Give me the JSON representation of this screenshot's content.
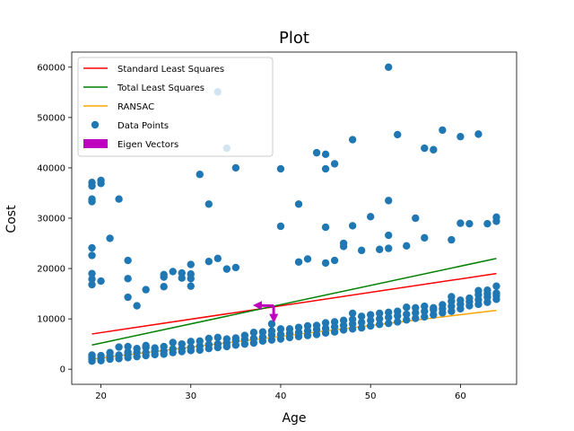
{
  "chart_data": {
    "type": "scatter",
    "title": "Plot",
    "xlabel": "Age",
    "ylabel": "Cost",
    "xlim": [
      16.75,
      66.25
    ],
    "ylim": [
      -3000,
      63000
    ],
    "xticks": [
      20,
      30,
      40,
      50,
      60
    ],
    "yticks": [
      0,
      10000,
      20000,
      30000,
      40000,
      50000,
      60000
    ],
    "grid": false,
    "legend_position": "top-left",
    "lines": [
      {
        "name": "Standard Least Squares",
        "color": "#ff0000",
        "x": [
          19,
          64
        ],
        "y": [
          7000,
          19000
        ]
      },
      {
        "name": "Total Least Squares",
        "color": "#008000",
        "x": [
          19,
          64
        ],
        "y": [
          4800,
          22000
        ]
      },
      {
        "name": "RANSAC",
        "color": "#ffa500",
        "x": [
          19,
          64
        ],
        "y": [
          2000,
          11700
        ]
      }
    ],
    "scatter": {
      "name": "Data Points",
      "color": "#1f77b4",
      "points": [
        [
          19,
          1600
        ],
        [
          19,
          2000
        ],
        [
          19,
          2400
        ],
        [
          19,
          2800
        ],
        [
          19,
          16800
        ],
        [
          19,
          17900
        ],
        [
          19,
          19000
        ],
        [
          19,
          22600
        ],
        [
          19,
          24100
        ],
        [
          19,
          33300
        ],
        [
          19,
          33800
        ],
        [
          19,
          36400
        ],
        [
          19,
          37100
        ],
        [
          20,
          1700
        ],
        [
          20,
          2200
        ],
        [
          20,
          2700
        ],
        [
          20,
          17500
        ],
        [
          20,
          36900
        ],
        [
          20,
          37500
        ],
        [
          21,
          2000
        ],
        [
          21,
          2600
        ],
        [
          21,
          3300
        ],
        [
          21,
          26000
        ],
        [
          22,
          2100
        ],
        [
          22,
          2800
        ],
        [
          22,
          4400
        ],
        [
          22,
          33800
        ],
        [
          23,
          2300
        ],
        [
          23,
          2900
        ],
        [
          23,
          3400
        ],
        [
          23,
          4500
        ],
        [
          23,
          14300
        ],
        [
          23,
          18000
        ],
        [
          23,
          21600
        ],
        [
          24,
          2500
        ],
        [
          24,
          3300
        ],
        [
          24,
          4100
        ],
        [
          24,
          12600
        ],
        [
          25,
          2700
        ],
        [
          25,
          3300
        ],
        [
          25,
          4300
        ],
        [
          25,
          4700
        ],
        [
          25,
          15800
        ],
        [
          26,
          2900
        ],
        [
          26,
          3600
        ],
        [
          26,
          4200
        ],
        [
          27,
          3000
        ],
        [
          27,
          3600
        ],
        [
          27,
          4500
        ],
        [
          27,
          16400
        ],
        [
          27,
          18300
        ],
        [
          27,
          18800
        ],
        [
          28,
          3300
        ],
        [
          28,
          4000
        ],
        [
          28,
          5300
        ],
        [
          28,
          19400
        ],
        [
          29,
          3500
        ],
        [
          29,
          4100
        ],
        [
          29,
          5000
        ],
        [
          29,
          18100
        ],
        [
          29,
          19100
        ],
        [
          30,
          3700
        ],
        [
          30,
          4300
        ],
        [
          30,
          5500
        ],
        [
          30,
          16500
        ],
        [
          30,
          18000
        ],
        [
          30,
          18900
        ],
        [
          30,
          20800
        ],
        [
          31,
          3800
        ],
        [
          31,
          4600
        ],
        [
          31,
          5600
        ],
        [
          31,
          38700
        ],
        [
          32,
          4100
        ],
        [
          32,
          4900
        ],
        [
          32,
          6100
        ],
        [
          32,
          21400
        ],
        [
          32,
          32800
        ],
        [
          33,
          4300
        ],
        [
          33,
          5000
        ],
        [
          33,
          6300
        ],
        [
          33,
          22000
        ],
        [
          33,
          55100
        ],
        [
          34,
          4500
        ],
        [
          34,
          5200
        ],
        [
          34,
          6000
        ],
        [
          34,
          19900
        ],
        [
          34,
          43900
        ],
        [
          35,
          4800
        ],
        [
          35,
          5700
        ],
        [
          35,
          6200
        ],
        [
          35,
          20200
        ],
        [
          35,
          40000
        ],
        [
          36,
          5000
        ],
        [
          36,
          5900
        ],
        [
          36,
          6700
        ],
        [
          37,
          5200
        ],
        [
          37,
          6100
        ],
        [
          37,
          7300
        ],
        [
          38,
          5600
        ],
        [
          38,
          6400
        ],
        [
          38,
          7400
        ],
        [
          39,
          5800
        ],
        [
          39,
          6800
        ],
        [
          39,
          7600
        ],
        [
          39,
          9000
        ],
        [
          40,
          6000
        ],
        [
          40,
          6900
        ],
        [
          40,
          8000
        ],
        [
          40,
          28400
        ],
        [
          40,
          39800
        ],
        [
          41,
          6300
        ],
        [
          41,
          7100
        ],
        [
          41,
          8000
        ],
        [
          42,
          6500
        ],
        [
          42,
          7300
        ],
        [
          42,
          8300
        ],
        [
          42,
          21300
        ],
        [
          42,
          32800
        ],
        [
          43,
          6700
        ],
        [
          43,
          7600
        ],
        [
          43,
          8600
        ],
        [
          43,
          21900
        ],
        [
          44,
          6900
        ],
        [
          44,
          7900
        ],
        [
          44,
          8700
        ],
        [
          44,
          43000
        ],
        [
          45,
          7200
        ],
        [
          45,
          8100
        ],
        [
          45,
          9200
        ],
        [
          45,
          21100
        ],
        [
          45,
          28200
        ],
        [
          45,
          39800
        ],
        [
          45,
          42700
        ],
        [
          46,
          7400
        ],
        [
          46,
          8400
        ],
        [
          46,
          9400
        ],
        [
          46,
          21600
        ],
        [
          46,
          40800
        ],
        [
          47,
          7800
        ],
        [
          47,
          8700
        ],
        [
          47,
          9700
        ],
        [
          47,
          24400
        ],
        [
          47,
          25000
        ],
        [
          48,
          8000
        ],
        [
          48,
          9000
        ],
        [
          48,
          9900
        ],
        [
          48,
          11100
        ],
        [
          48,
          28500
        ],
        [
          48,
          45600
        ],
        [
          49,
          8200
        ],
        [
          49,
          9300
        ],
        [
          49,
          10500
        ],
        [
          49,
          23600
        ],
        [
          50,
          8600
        ],
        [
          50,
          9700
        ],
        [
          50,
          10800
        ],
        [
          50,
          30300
        ],
        [
          51,
          8900
        ],
        [
          51,
          10000
        ],
        [
          51,
          11100
        ],
        [
          51,
          23800
        ],
        [
          52,
          9100
        ],
        [
          52,
          10300
        ],
        [
          52,
          11300
        ],
        [
          52,
          24000
        ],
        [
          52,
          26600
        ],
        [
          52,
          33500
        ],
        [
          52,
          60000
        ],
        [
          53,
          9400
        ],
        [
          53,
          10600
        ],
        [
          53,
          11500
        ],
        [
          53,
          46600
        ],
        [
          54,
          9800
        ],
        [
          54,
          10900
        ],
        [
          54,
          12300
        ],
        [
          54,
          24500
        ],
        [
          55,
          10100
        ],
        [
          55,
          11200
        ],
        [
          55,
          12200
        ],
        [
          55,
          30000
        ],
        [
          56,
          10400
        ],
        [
          56,
          11500
        ],
        [
          56,
          12500
        ],
        [
          56,
          26100
        ],
        [
          56,
          43900
        ],
        [
          57,
          10800
        ],
        [
          57,
          11800
        ],
        [
          57,
          12200
        ],
        [
          57,
          43600
        ],
        [
          58,
          11200
        ],
        [
          58,
          12000
        ],
        [
          58,
          12800
        ],
        [
          58,
          47500
        ],
        [
          59,
          11500
        ],
        [
          59,
          12500
        ],
        [
          59,
          13500
        ],
        [
          59,
          14400
        ],
        [
          59,
          25700
        ],
        [
          60,
          12000
        ],
        [
          60,
          12900
        ],
        [
          60,
          13700
        ],
        [
          60,
          29000
        ],
        [
          60,
          46200
        ],
        [
          61,
          12600
        ],
        [
          61,
          13400
        ],
        [
          61,
          14100
        ],
        [
          61,
          28900
        ],
        [
          62,
          12900
        ],
        [
          62,
          13800
        ],
        [
          62,
          14800
        ],
        [
          62,
          15600
        ],
        [
          62,
          46700
        ],
        [
          63,
          13300
        ],
        [
          63,
          14300
        ],
        [
          63,
          15000
        ],
        [
          63,
          15700
        ],
        [
          63,
          28900
        ],
        [
          64,
          13900
        ],
        [
          64,
          14600
        ],
        [
          64,
          15100
        ],
        [
          64,
          16500
        ],
        [
          64,
          29400
        ],
        [
          64,
          30200
        ]
      ]
    },
    "eigen_vectors": {
      "name": "Eigen Vectors",
      "color": "#bf00bf",
      "origin": [
        39.2,
        12600
      ],
      "vectors": [
        [
          -2.3,
          100
        ],
        [
          0.05,
          -3400
        ]
      ]
    },
    "legend": [
      "Standard Least Squares",
      "Total Least Squares",
      "RANSAC",
      "Data Points",
      "Eigen Vectors"
    ]
  }
}
